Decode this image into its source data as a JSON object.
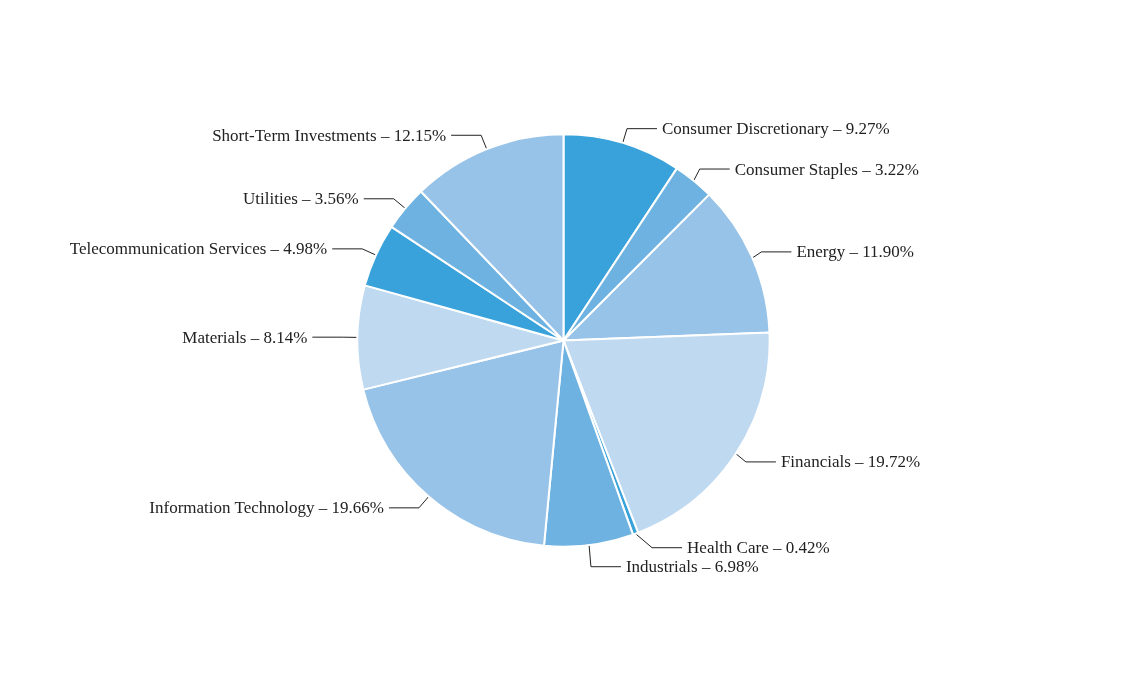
{
  "chart_data": {
    "type": "pie",
    "categories": [
      "Consumer Discretionary",
      "Consumer Staples",
      "Energy",
      "Financials",
      "Health Care",
      "Industrials",
      "Information Technology",
      "Materials",
      "Telecommunication Services",
      "Utilities",
      "Short-Term Investments"
    ],
    "values": [
      9.27,
      3.22,
      11.9,
      19.72,
      0.42,
      6.98,
      19.66,
      8.14,
      4.98,
      3.56,
      12.15
    ],
    "value_labels": [
      "9.27%",
      "3.22%",
      "11.90%",
      "19.72%",
      "0.42%",
      "6.98%",
      "19.66%",
      "8.14%",
      "4.98%",
      "3.56%",
      "12.15%"
    ],
    "colors": [
      "#3aa2db",
      "#6db2e1",
      "#98c3e8",
      "#bfd9f0",
      "#3aa2db",
      "#6db2e1",
      "#98c3e8",
      "#bfd9f0",
      "#3aa2db",
      "#6db2e1",
      "#98c3e8"
    ]
  }
}
